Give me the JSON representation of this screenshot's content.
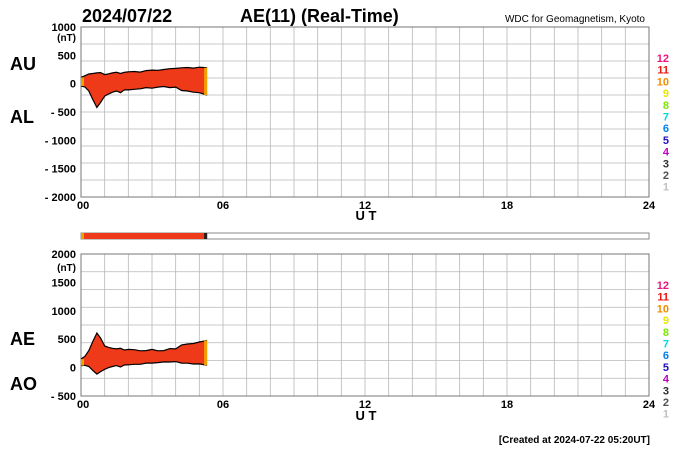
{
  "header": {
    "date": "2024/07/22",
    "title": "AE(11) (Real-Time)",
    "source": "WDC for Geomagnetism, Kyoto"
  },
  "footer": {
    "created": "[Created at 2024-07-22 05:20UT]"
  },
  "scale_legend": {
    "labels": [
      "12",
      "11",
      "10",
      "9",
      "8",
      "7",
      "6",
      "5",
      "4",
      "3",
      "2",
      "1"
    ],
    "colors": [
      "#e8177d",
      "#e8170f",
      "#f08c00",
      "#e8e800",
      "#7ce800",
      "#00d8e8",
      "#0080f0",
      "#2010c0",
      "#c000c0",
      "#303030",
      "#505050",
      "#c0c0c0"
    ]
  },
  "chart_data": [
    {
      "type": "area",
      "panel": "AU/AL",
      "left_labels": [
        "AU",
        "AL"
      ],
      "unit_label": "(nT)",
      "ylim": [
        -2000,
        1000
      ],
      "yticks": [
        1000,
        500,
        0,
        -500,
        -1000,
        -1500,
        -2000
      ],
      "ytick_labels": [
        "1000",
        "500",
        "0",
        "- 500",
        "- 1000",
        "- 1500",
        "- 2000"
      ],
      "xlim": [
        0,
        24
      ],
      "xticks": [
        "00",
        "06",
        "12",
        "18",
        "24"
      ],
      "xtick_values": [
        0,
        6,
        12,
        18,
        24
      ],
      "xlabel": "U T",
      "x": [
        0.0,
        0.17,
        0.33,
        0.5,
        0.67,
        0.83,
        1.0,
        1.17,
        1.33,
        1.5,
        1.67,
        1.83,
        2.0,
        2.25,
        2.5,
        2.75,
        3.0,
        3.25,
        3.5,
        3.75,
        4.0,
        4.25,
        4.5,
        4.75,
        5.0,
        5.17,
        5.33
      ],
      "series": [
        {
          "name": "AU",
          "values": [
            110,
            140,
            170,
            180,
            190,
            195,
            160,
            175,
            190,
            200,
            180,
            200,
            210,
            215,
            205,
            230,
            240,
            235,
            250,
            265,
            270,
            280,
            285,
            275,
            290,
            285,
            280
          ]
        },
        {
          "name": "AL",
          "values": [
            -40,
            -60,
            -130,
            -280,
            -420,
            -330,
            -220,
            -180,
            -150,
            -130,
            -160,
            -110,
            -110,
            -100,
            -90,
            -70,
            -80,
            -60,
            -50,
            -70,
            -60,
            -120,
            -130,
            -150,
            -160,
            -180,
            -200
          ]
        }
      ]
    },
    {
      "type": "area",
      "panel": "AE/AO",
      "left_labels": [
        "AE",
        "AO"
      ],
      "unit_label": "(nT)",
      "ylim": [
        -500,
        2000
      ],
      "yticks": [
        2000,
        1500,
        1000,
        500,
        0,
        -500
      ],
      "ytick_labels": [
        "2000",
        "1500",
        "1000",
        "500",
        "0",
        "- 500"
      ],
      "xlim": [
        0,
        24
      ],
      "xticks": [
        "00",
        "06",
        "12",
        "18",
        "24"
      ],
      "xtick_values": [
        0,
        6,
        12,
        18,
        24
      ],
      "xlabel": "U T",
      "x": [
        0.0,
        0.17,
        0.33,
        0.5,
        0.67,
        0.83,
        1.0,
        1.17,
        1.33,
        1.5,
        1.67,
        1.83,
        2.0,
        2.25,
        2.5,
        2.75,
        3.0,
        3.25,
        3.5,
        3.75,
        4.0,
        4.25,
        4.5,
        4.75,
        5.0,
        5.17,
        5.33
      ],
      "series": [
        {
          "name": "AE",
          "values": [
            150,
            200,
            300,
            460,
            610,
            520,
            380,
            355,
            340,
            330,
            340,
            310,
            320,
            315,
            295,
            300,
            320,
            295,
            300,
            335,
            330,
            400,
            415,
            425,
            450,
            465,
            480
          ]
        },
        {
          "name": "AO",
          "values": [
            35,
            40,
            20,
            -50,
            -115,
            -70,
            -30,
            0,
            20,
            35,
            10,
            45,
            50,
            58,
            58,
            80,
            80,
            88,
            100,
            98,
            105,
            80,
            78,
            63,
            65,
            53,
            40
          ]
        }
      ]
    }
  ]
}
